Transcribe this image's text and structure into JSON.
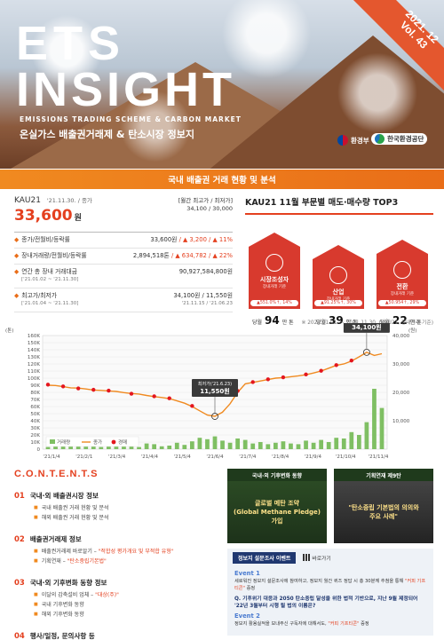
{
  "header": {
    "title_line1": "ETS",
    "title_line2": "INSIGHT",
    "subtitle_en": "EMISSIONS TRADING SCHEME & CARBON MARKET",
    "subtitle_ko": "온실가스 배출권거래제 & 탄소시장 정보지",
    "issue_date": "2021. 12",
    "issue_vol": "Vol. 43"
  },
  "logos": {
    "ministry": "환경부",
    "corporation": "한국환경공단"
  },
  "section_title": "국내 배출권 거래 현황 및 분석",
  "summary": {
    "product": "KAU21",
    "date": "'21.11.30. / 종가",
    "price": "33,600",
    "price_unit": "원",
    "hilo_label": "[월간 최고가 / 최저가]",
    "hilo_value": "34,100 / 30,000",
    "rows": [
      {
        "label": "종가/전월비/등락률",
        "sub": "",
        "value": "33,600원",
        "change": "/ ▲ 3,200 / ▲ 11%",
        "value_sub": ""
      },
      {
        "label": "장내거래량/전월비/등락률",
        "sub": "",
        "value": "2,894,518톤",
        "change": "/ ▲ 634,782 / ▲ 22%",
        "value_sub": ""
      },
      {
        "label": "연간 총 장내 거래대금",
        "sub": "['21.01.02 ~ '21.11.30]",
        "value": "90,927,584,800원",
        "change": "",
        "value_sub": ""
      },
      {
        "label": "최고가/최저가",
        "sub": "['21.01.04 ~ '21.11.30]",
        "value": "34,100원 / 11,550원",
        "change": "",
        "value_sub": "'21.11.15 / '21.06.23"
      }
    ]
  },
  "top3": {
    "title": "KAU21 11월 부문별 매도·매수량 TOP3",
    "items": [
      {
        "name": "시장조성자",
        "caption": "장내거래 기준",
        "pill": "▲551.0%↑, 14%",
        "prefix": "당월",
        "volume": "94",
        "unit": "만 톤",
        "height": 70
      },
      {
        "name": "산업",
        "caption": "장내거래 기준",
        "pill": "▲91.25%↑, 30%",
        "prefix": "당월",
        "volume": "39",
        "unit": "만 톤",
        "height": 56
      },
      {
        "name": "전환",
        "caption": "장내거래 기준",
        "pill": "▲50.954↑, 29%",
        "prefix": "당월",
        "volume": "22",
        "unit": "만 톤",
        "height": 62
      }
    ]
  },
  "chart_note": "※ 2021.01.01. ~ 2021.11.30. (KAU21, 장내거래 기준)",
  "chart_data": {
    "type": "line",
    "left_unit": "(톤)",
    "right_unit": "(원)",
    "left_ticks": [
      "160K",
      "150K",
      "140K",
      "130K",
      "120K",
      "110K",
      "100K",
      "90K",
      "80K",
      "70K",
      "60K",
      "50K",
      "40K",
      "30K",
      "20K",
      "10K",
      "0"
    ],
    "right_ticks": [
      "40,000",
      "30,000",
      "20,000",
      "10,000"
    ],
    "x_ticks": [
      "'21/1/4",
      "'21/2/1",
      "'21/3/4",
      "'21/4/4",
      "'21/5/4",
      "'21/6/4",
      "'21/7/4",
      "'21/8/4",
      "'21/9/4",
      "'21/10/4",
      "'21/11/4"
    ],
    "legend": [
      "거래량",
      "종가",
      "경매"
    ],
    "annotations": [
      {
        "label": "최저가('21.6.23)",
        "value": "11,550원"
      },
      {
        "label": "최고가('21.11.15)",
        "value": "34,100원"
      }
    ],
    "close_price": [
      22500,
      22400,
      22000,
      21600,
      21500,
      21200,
      20800,
      20700,
      20500,
      20300,
      19900,
      19600,
      19400,
      18900,
      18500,
      18200,
      17800,
      17000,
      16200,
      15000,
      13500,
      12000,
      11550,
      13000,
      16000,
      20000,
      23000,
      23500,
      24000,
      24500,
      25000,
      25200,
      25500,
      25800,
      26200,
      26800,
      27500,
      28500,
      29500,
      30000,
      31000,
      32500,
      34100,
      33000,
      33600
    ],
    "auction_price": [
      22700,
      null,
      22100,
      null,
      21400,
      null,
      20900,
      null,
      20600,
      null,
      null,
      19500,
      null,
      null,
      18600,
      null,
      17900,
      null,
      null,
      15200,
      null,
      null,
      null,
      null,
      null,
      20500,
      null,
      23600,
      null,
      24600,
      null,
      25300,
      null,
      null,
      26300,
      null,
      27600,
      null,
      29600,
      null,
      31200,
      null,
      null,
      null,
      null
    ],
    "volume": [
      3000,
      5000,
      6000,
      8000,
      4000,
      7000,
      5000,
      3000,
      9000,
      4000,
      6000,
      5000,
      3000,
      8000,
      7000,
      4000,
      5000,
      9000,
      6000,
      11000,
      16000,
      14000,
      18000,
      12000,
      9000,
      15000,
      13000,
      8000,
      10000,
      7000,
      9000,
      11000,
      8000,
      7000,
      12000,
      9000,
      13000,
      10000,
      16000,
      15000,
      24000,
      20000,
      38000,
      85000,
      58000
    ],
    "left_range": [
      0,
      160000
    ],
    "right_range": [
      0,
      40000
    ]
  },
  "contents": {
    "heading": "C.O.N.T.E.N.T.S",
    "items": [
      {
        "num": "01",
        "title": "국내·외 배출권시장 정보",
        "subs": [
          {
            "text": "국내 배출권 거래 현황 및 분석",
            "hl": ""
          },
          {
            "text": "해외 배출권 거래 현황 및 분석",
            "hl": ""
          }
        ]
      },
      {
        "num": "02",
        "title": "배출권거래제 정보",
        "subs": [
          {
            "text": "배출권거래제 바로알기 –",
            "hl": "\"적합성 평가개요 및 부적합 유형\""
          },
          {
            "text": "기획연재 –",
            "hl": "\"탄소중립기본법\""
          }
        ]
      },
      {
        "num": "03",
        "title": "국내·외 기후변화 동향 정보",
        "subs": [
          {
            "text": "이달의 감축설비 업체 –",
            "hl": "\"대상(주)\""
          },
          {
            "text": "국내 기후변화 동향",
            "hl": ""
          },
          {
            "text": "해외 기후변화 동향",
            "hl": ""
          }
        ]
      },
      {
        "num": "04",
        "title": "행사/일정, 문의사항 등",
        "subs": []
      }
    ]
  },
  "boxes": [
    {
      "header": "국내·외 기후변화 동향",
      "body": "글로벌 메탄 조약\n(Global Methane Pledge) 가입"
    },
    {
      "header": "기획연재 제9탄",
      "body": "\"탄소중립 기본법의 의의와\n주요 사례\""
    }
  ],
  "event": {
    "tag": "정보지 설문조사 이벤트",
    "link": "바로가기",
    "e1_title": "Event 1",
    "e1_text": "세로워진 정보지 설문조사에 참여하고, 정보지 월간 퀴즈 정답 시 총 30분께 추첨을 통해",
    "e1_hl": "\"커피 기프티콘\"",
    "e1_end": "증정",
    "question": "Q. 기후위기 대응과 2050 탄소중립 달성을 위한 법적 기반으로, 지난 9월 제정되어 '22년 3월부터 시행 될 법의 이름은?",
    "e2_title": "Event 2",
    "e2_text": "정보지 활용실적을 보내주신 구독자에 대해서도,",
    "e2_hl": "\"커피 기프티콘\"",
    "e2_end": "증정"
  }
}
